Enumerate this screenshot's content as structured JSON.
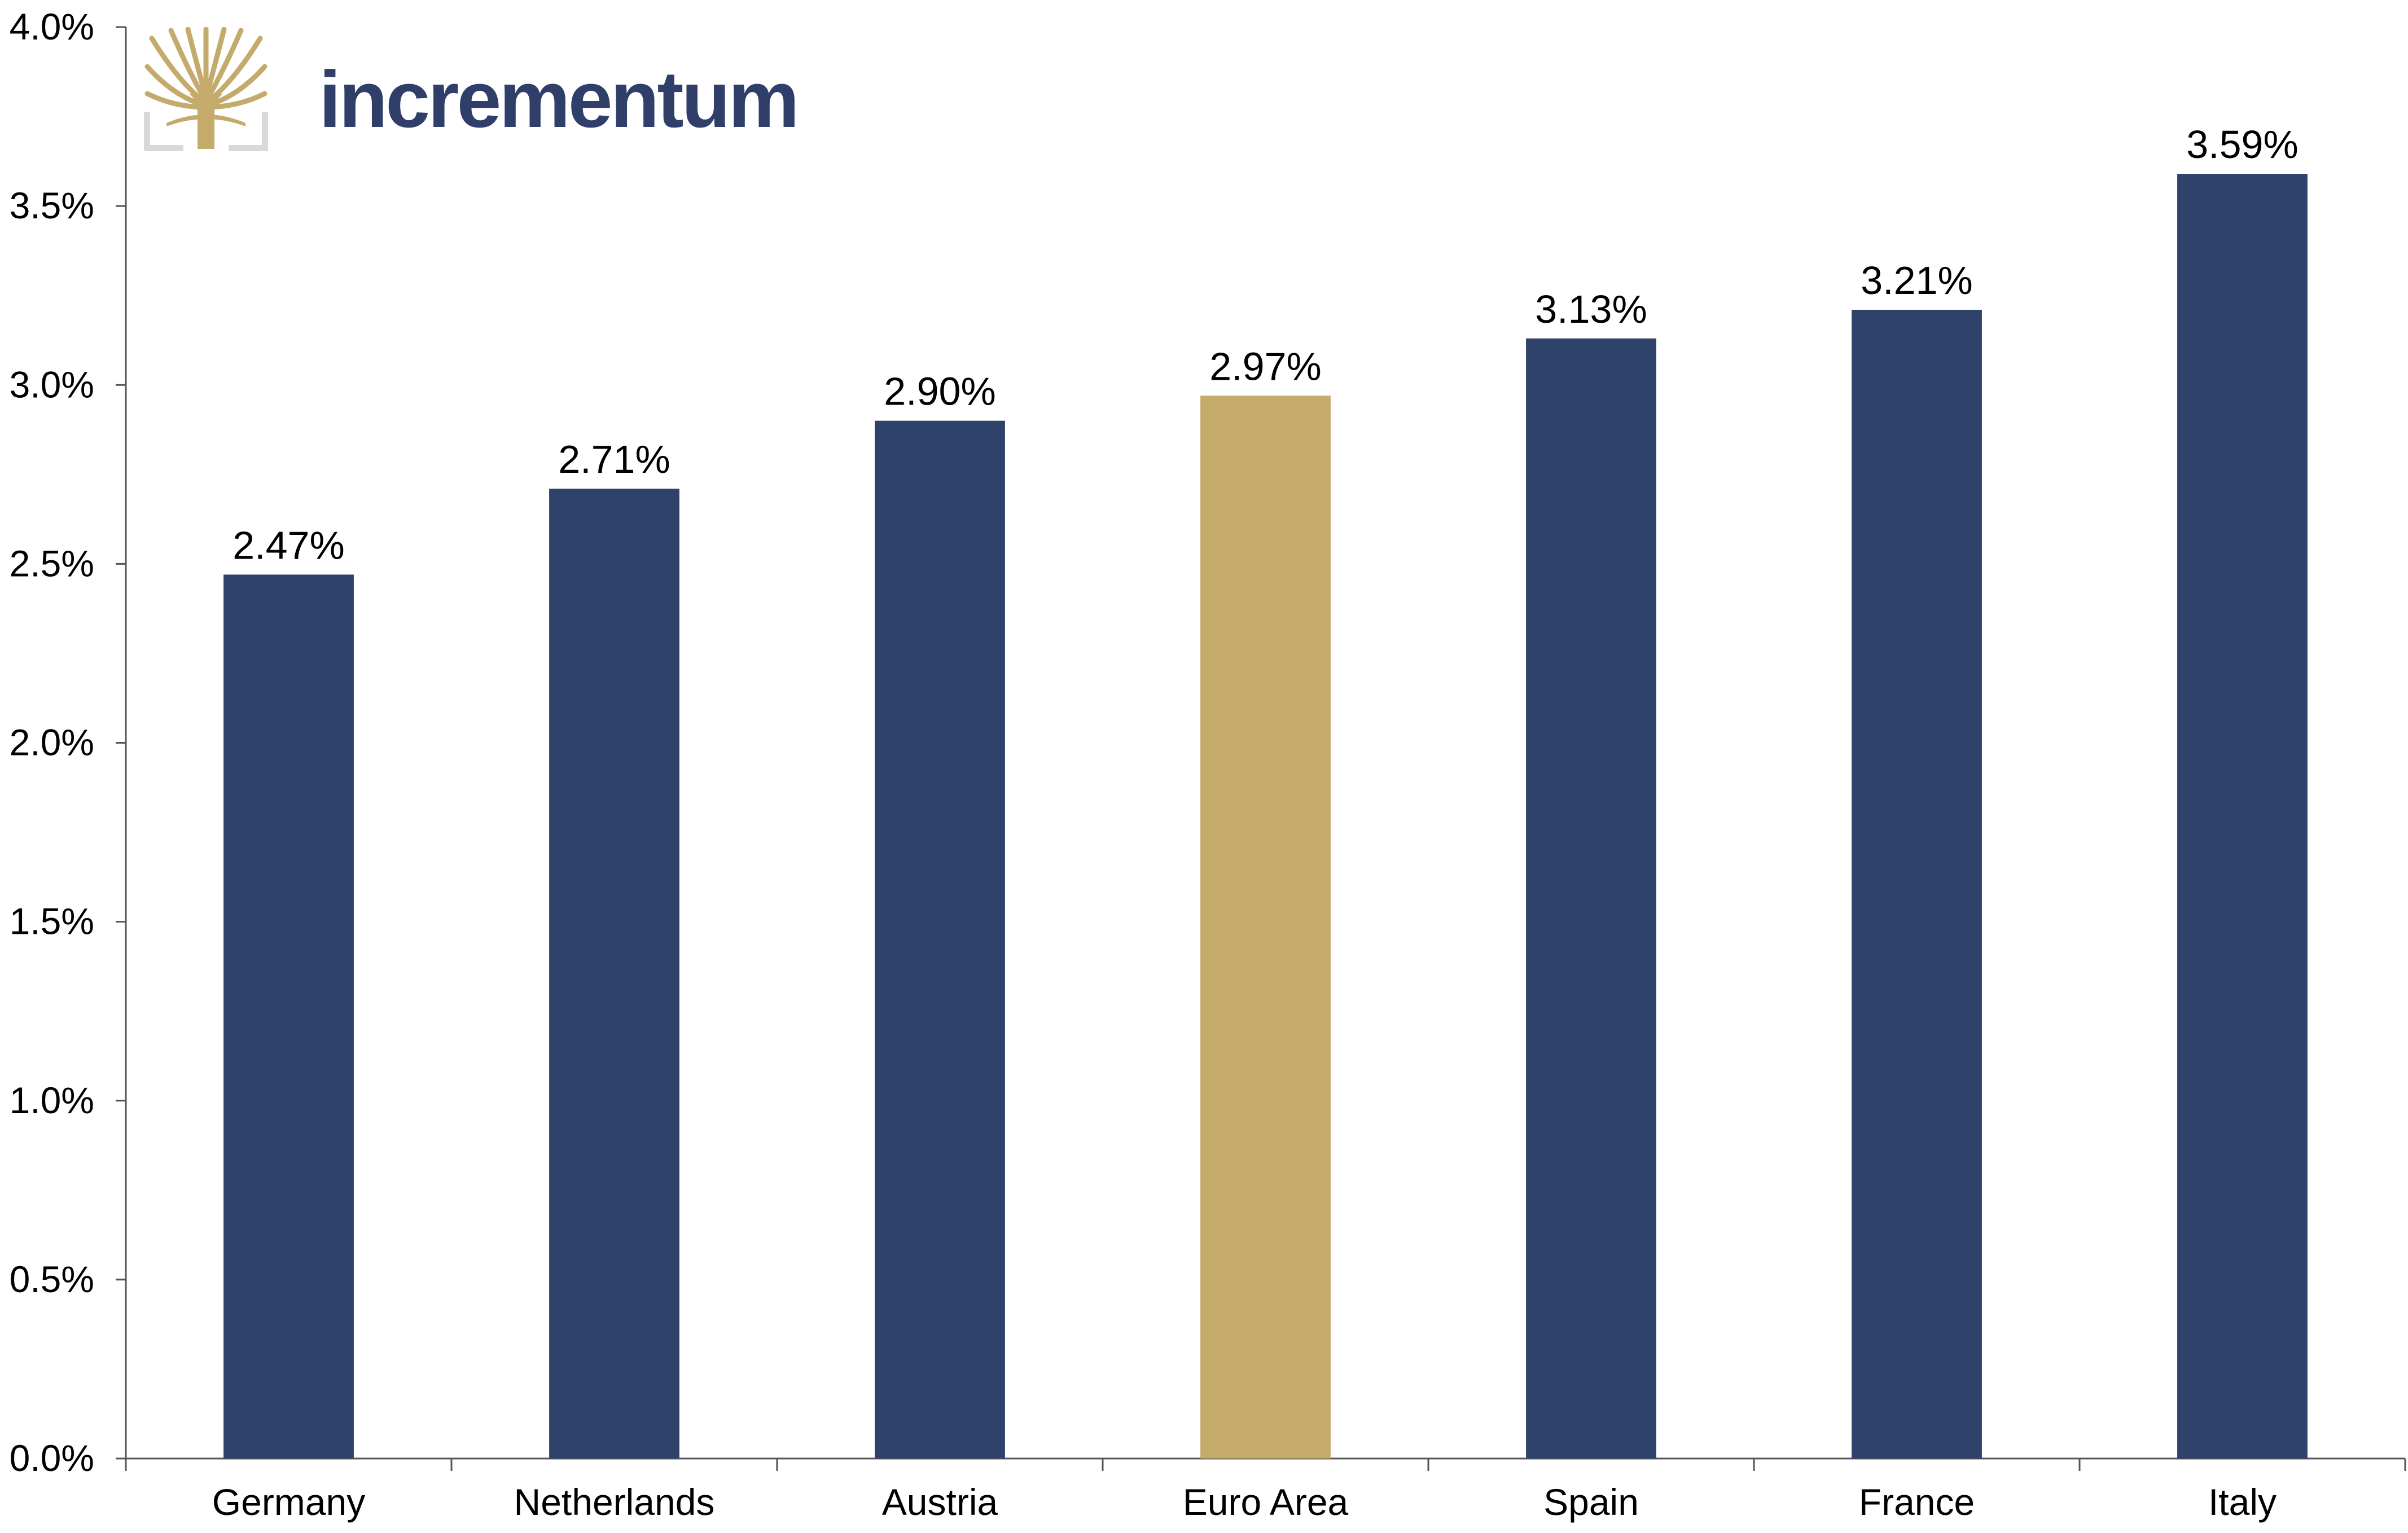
{
  "brand": {
    "name": "incrementum",
    "icon": "tree-logo-icon"
  },
  "colors": {
    "primary_bar": "#2f426b",
    "highlight_bar": "#c4aa6b",
    "brand_text": "#2f3f69",
    "brand_gold": "#c4aa6b",
    "brand_frame": "#d9d9d9",
    "axis": "#555555",
    "text": "#000000"
  },
  "chart_data": {
    "type": "bar",
    "categories": [
      "Germany",
      "Netherlands",
      "Austria",
      "Euro Area",
      "Spain",
      "France",
      "Italy"
    ],
    "values": [
      2.47,
      2.71,
      2.9,
      2.97,
      3.13,
      3.21,
      3.59
    ],
    "data_labels": [
      "2.47%",
      "2.71%",
      "2.90%",
      "2.97%",
      "3.13%",
      "3.21%",
      "3.59%"
    ],
    "highlight_category": "Euro Area",
    "title": "",
    "xlabel": "",
    "ylabel": "",
    "ylim": [
      0,
      4.0
    ],
    "yticks": [
      0,
      0.5,
      1.0,
      1.5,
      2.0,
      2.5,
      3.0,
      3.5,
      4.0
    ],
    "ytick_labels": [
      "0.0%",
      "0.5%",
      "1.0%",
      "1.5%",
      "2.0%",
      "2.5%",
      "3.0%",
      "3.5%",
      "4.0%"
    ],
    "grid": false,
    "legend": "none"
  }
}
